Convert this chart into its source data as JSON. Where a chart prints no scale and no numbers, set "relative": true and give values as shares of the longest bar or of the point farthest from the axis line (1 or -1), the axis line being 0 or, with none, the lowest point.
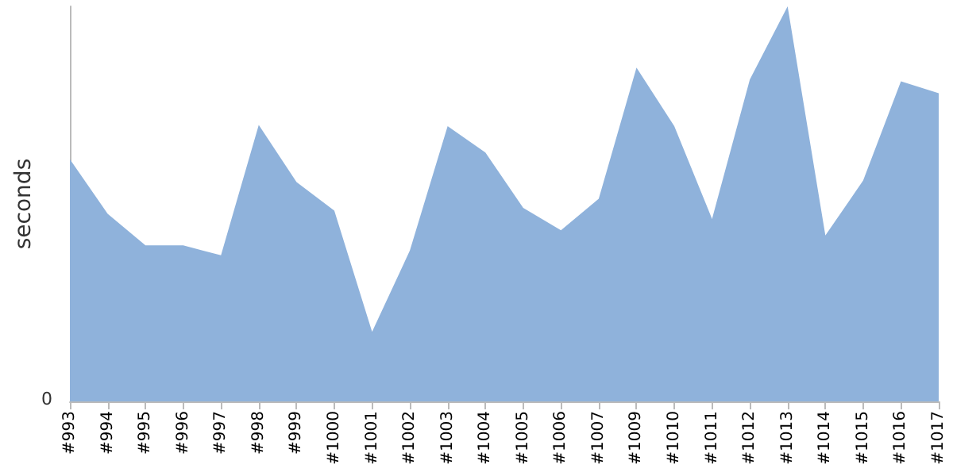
{
  "chart_data": {
    "type": "area",
    "relative": true,
    "ylabel": "seconds",
    "annotations": [
      "0"
    ],
    "categories": [
      "#993",
      "#994",
      "#995",
      "#996",
      "#997",
      "#998",
      "#999",
      "#1000",
      "#1001",
      "#1002",
      "#1003",
      "#1004",
      "#1005",
      "#1006",
      "#1007",
      "#1009",
      "#1010",
      "#1011",
      "#1012",
      "#1013",
      "#1014",
      "#1015",
      "#1016",
      "#1017"
    ],
    "series": [
      {
        "color": "#8fb2db",
        "values": [
          0.613,
          0.475,
          0.395,
          0.395,
          0.37,
          0.7,
          0.555,
          0.483,
          0.176,
          0.382,
          0.697,
          0.63,
          0.49,
          0.433,
          0.513,
          0.845,
          0.697,
          0.462,
          0.815,
          1,
          0.42,
          0.559,
          0.81,
          0.78
        ]
      }
    ],
    "grid": false
  }
}
